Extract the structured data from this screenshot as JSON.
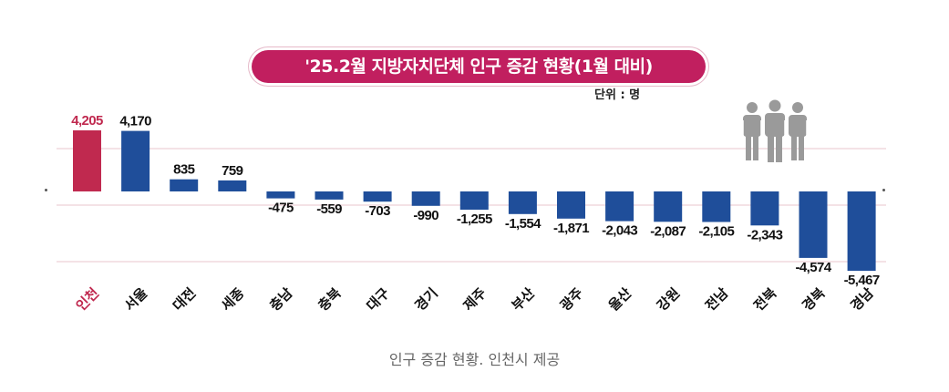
{
  "title": "'25.2월 지방자치단체 인구 증감 현황(1월 대비)",
  "unit_label": "단위 : 명",
  "caption": "인구 증감 현황. 인천시 제공",
  "icons": {
    "people": "people-group-icon"
  },
  "colors": {
    "highlight": "#c0294f",
    "bar": "#1f4e9a",
    "title_bg": "#c11f5f",
    "grid": "#e9c4cc",
    "caption": "#666666"
  },
  "chart_data": {
    "type": "bar",
    "title": "'25.2월 지방자치단체 인구 증감 현황(1월 대비)",
    "unit": "명",
    "categories": [
      "인천",
      "서울",
      "대전",
      "세종",
      "충남",
      "충북",
      "대구",
      "경기",
      "제주",
      "부산",
      "광주",
      "울산",
      "강원",
      "전남",
      "전북",
      "경북",
      "경남"
    ],
    "values": [
      4205,
      4170,
      835,
      759,
      -475,
      -559,
      -703,
      -990,
      -1255,
      -1554,
      -1871,
      -2043,
      -2087,
      -2105,
      -2343,
      -4574,
      -5467
    ],
    "value_labels": [
      "4,205",
      "4,170",
      "835",
      "759",
      "-475",
      "-559",
      "-703",
      "-990",
      "-1,255",
      "-1,554",
      "-1,871",
      "-2,043",
      "-2,087",
      "-2,105",
      "-2,343",
      "-4,574",
      "-5,467"
    ],
    "highlight_index": 0,
    "legend": "none",
    "grid": true
  }
}
